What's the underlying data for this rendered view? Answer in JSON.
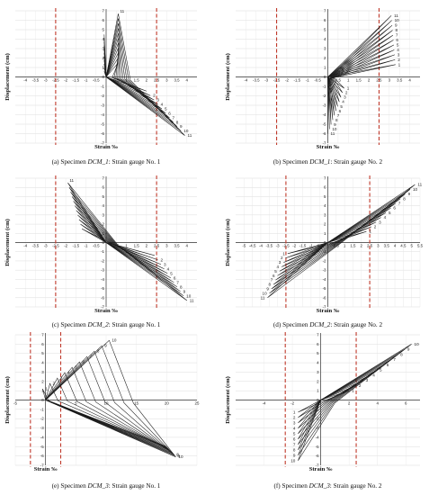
{
  "chart_data": [
    {
      "id": "a",
      "type": "line",
      "caption_prefix": "(a) Specimen ",
      "caption_specimen": "DCM_1",
      "caption_suffix": ": Strain gauge No. 1",
      "xlabel": "Strain ‰",
      "ylabel": "Displacement (cm)",
      "xlim": [
        -4.5,
        4.5
      ],
      "ylim": [
        -7,
        7
      ],
      "xticks": [
        -4,
        -3.5,
        -3,
        -2.5,
        -2,
        -1.5,
        -1,
        -0.5,
        0,
        0.5,
        1,
        1.5,
        2,
        2.5,
        3,
        3.5,
        4
      ],
      "yticks": [
        -7,
        -6,
        -5,
        -4,
        -3,
        -2,
        -1,
        0,
        1,
        2,
        3,
        4,
        5,
        6,
        7
      ],
      "limit_lines": [
        -2.5,
        2.5
      ],
      "loops": {
        "cycles": 11,
        "up_x": [
          0.6,
          0.6
        ],
        "up_y": [
          1.5,
          6.7
        ],
        "down_x": [
          2.0,
          3.9
        ],
        "down_y": [
          -1.5,
          -6.2
        ],
        "root_x": [
          0.3,
          1.2
        ],
        "tail_x": [
          -0.1,
          -0.1
        ],
        "tail_y": [
          0.6,
          4.5
        ]
      },
      "cycle_labels": [
        "2",
        "3",
        "4",
        "5",
        "6",
        "7",
        "8",
        "9",
        "10",
        "11"
      ],
      "top_labels": [
        "11"
      ]
    },
    {
      "id": "b",
      "type": "line",
      "caption_prefix": "(b) Specimen ",
      "caption_specimen": "DCM_1",
      "caption_suffix": ": Strain gauge No. 2",
      "xlabel": "Strain ‰",
      "ylabel": "Displacement (cm)",
      "xlim": [
        -4.5,
        4.5
      ],
      "ylim": [
        -7,
        7
      ],
      "xticks": [
        -4,
        -3.5,
        -3,
        -2.5,
        -2,
        -1.5,
        -1,
        -0.5,
        0,
        0.5,
        1,
        1.5,
        2,
        2.5,
        3,
        3.5,
        4
      ],
      "yticks": [
        -7,
        -6,
        -5,
        -4,
        -3,
        -2,
        -1,
        0,
        1,
        2,
        3,
        4,
        5,
        6,
        7
      ],
      "limit_lines": [
        -2.5,
        2.5
      ],
      "loops": {
        "cycles": 11,
        "up_x": [
          3.3,
          3.1
        ],
        "up_y": [
          1.3,
          6.5
        ],
        "down_x": [
          0.8,
          0.0
        ],
        "down_y": [
          -1.2,
          -6.0
        ],
        "root_x": [
          0.3,
          0.0
        ],
        "tail_x": [
          0.0,
          0.0
        ],
        "tail_y": [
          0.0,
          0.0
        ]
      },
      "cycle_labels": [
        "1",
        "2",
        "3",
        "4",
        "5",
        "6",
        "7",
        "8",
        "9",
        "10",
        "11"
      ],
      "lower_labels": [
        "1",
        "2",
        "3",
        "4",
        "5",
        "6",
        "7",
        "8",
        "9",
        "10",
        "11"
      ]
    },
    {
      "id": "c",
      "type": "line",
      "caption_prefix": "(c) Specimen ",
      "caption_specimen": "DCM_2",
      "caption_suffix": ": Strain gauge No. 1",
      "xlabel": "Strain ‰",
      "ylabel": "Displacement (cm)",
      "xlim": [
        -4.5,
        4.5
      ],
      "ylim": [
        -7,
        7
      ],
      "xticks": [
        -4,
        -3.5,
        -3,
        -2.5,
        -2,
        -1.5,
        -1,
        -0.5,
        0,
        0.5,
        1,
        1.5,
        2,
        2.5,
        3,
        3.5,
        4
      ],
      "yticks": [
        -7,
        -6,
        -5,
        -4,
        -3,
        -2,
        -1,
        0,
        1,
        2,
        3,
        4,
        5,
        6,
        7
      ],
      "limit_lines": [
        -2.5,
        2.5
      ],
      "loops": {
        "cycles": 11,
        "up_x": [
          -1.2,
          -1.9
        ],
        "up_y": [
          1.5,
          6.5
        ],
        "down_x": [
          2.4,
          4.0
        ],
        "down_y": [
          -1.4,
          -6.3
        ],
        "root_x": [
          0.2,
          0.6
        ],
        "tail_x": [
          0.0,
          0.0
        ],
        "tail_y": [
          0.0,
          0.0
        ]
      },
      "cycle_labels": [
        "2",
        "3",
        "4",
        "5",
        "6",
        "7",
        "8",
        "9",
        "10",
        "11"
      ],
      "top_labels": [
        "11"
      ]
    },
    {
      "id": "d",
      "type": "line",
      "caption_prefix": "(d) Specimen ",
      "caption_specimen": "DCM_2",
      "caption_suffix": ": Strain gauge No. 2",
      "xlabel": "Strain ‰",
      "ylabel": "Displacement (cm)",
      "xlim": [
        -5.5,
        5.5
      ],
      "ylim": [
        -7,
        7
      ],
      "xticks": [
        -5,
        -4.5,
        -4,
        -3.5,
        -3,
        -2.5,
        -2,
        -1.5,
        -1,
        -0.5,
        0,
        0.5,
        1,
        1.5,
        2,
        2.5,
        3,
        3.5,
        4,
        4.5,
        5,
        5.5
      ],
      "yticks": [
        -7,
        -6,
        -5,
        -4,
        -3,
        -2,
        -1,
        0,
        1,
        2,
        3,
        4,
        5,
        6,
        7
      ],
      "limit_lines": [
        -2.5,
        2.5
      ],
      "loops": {
        "cycles": 11,
        "up_x": [
          2.3,
          5.2
        ],
        "up_y": [
          1.2,
          6.3
        ],
        "down_x": [
          -2.4,
          -3.6
        ],
        "down_y": [
          -1.2,
          -6.0
        ],
        "root_x": [
          0.2,
          0.6
        ],
        "tail_x": [
          0.0,
          0.0
        ],
        "tail_y": [
          0.0,
          0.0
        ]
      },
      "cycle_labels": [
        "1",
        "2",
        "3",
        "4",
        "5",
        "6",
        "7",
        "8",
        "9",
        "10",
        "11"
      ],
      "lower_labels": [
        "1",
        "2",
        "3",
        "4",
        "5",
        "6",
        "7",
        "8",
        "9",
        "10",
        "11"
      ]
    },
    {
      "id": "e",
      "type": "line",
      "caption_prefix": "(e) Specimen ",
      "caption_specimen": "DCM_3",
      "caption_suffix": ": Strain gauge No. 1",
      "xlabel": "Strain ‰",
      "ylabel": "Displacement (cm)",
      "xlim": [
        -5,
        25
      ],
      "ylim": [
        -7,
        7
      ],
      "xticks": [
        -5,
        0,
        5,
        10,
        15,
        20,
        25
      ],
      "yticks": [
        -7,
        -6,
        -5,
        -4,
        -3,
        -2,
        -1,
        0,
        1,
        2,
        3,
        4,
        5,
        6,
        7
      ],
      "limit_lines": [
        -2.5,
        2.5
      ],
      "loops": {
        "cycles": 10,
        "up_x": [
          -0.5,
          10.5
        ],
        "up_y": [
          1.2,
          6.4
        ],
        "down_x": [
          20.0,
          21.5
        ],
        "down_y": [
          -5.0,
          -6.1
        ],
        "root_x": [
          0.5,
          14.5
        ],
        "tail_x": [
          0.0,
          0.0
        ],
        "tail_y": [
          0.0,
          0.0
        ]
      },
      "cycle_labels": [
        "1",
        "2",
        "3",
        "4",
        "5",
        "6",
        "7",
        "8",
        "9",
        "10"
      ],
      "lower_labels": [
        "8",
        "9",
        "10"
      ]
    },
    {
      "id": "f",
      "type": "line",
      "caption_prefix": "(f) Specimen ",
      "caption_specimen": "DCM_3",
      "caption_suffix": ": Strain gauge No. 2",
      "xlabel": "Strain ‰",
      "ylabel": "Displacement (cm)",
      "xlim": [
        -6,
        7
      ],
      "ylim": [
        -7,
        7
      ],
      "xticks": [
        -4,
        -2,
        0,
        2,
        4,
        6
      ],
      "yticks": [
        -7,
        -6,
        -5,
        -4,
        -3,
        -2,
        -1,
        0,
        1,
        2,
        3,
        4,
        5,
        6,
        7
      ],
      "limit_lines": [
        -2.5,
        2.5
      ],
      "loops": {
        "cycles": 10,
        "up_x": [
          2.0,
          6.4
        ],
        "up_y": [
          1.0,
          6.0
        ],
        "down_x": [
          -1.6,
          -1.6
        ],
        "down_y": [
          -1.3,
          -6.5
        ],
        "root_x": [
          0.3,
          1.0
        ],
        "tail_x": [
          0.0,
          0.0
        ],
        "tail_y": [
          0.0,
          0.0
        ]
      },
      "cycle_labels": [
        "1",
        "2",
        "3",
        "4",
        "5",
        "6",
        "7",
        "8",
        "9",
        "10"
      ],
      "lower_labels": [
        "1",
        "2",
        "3",
        "4",
        "5",
        "6",
        "7",
        "8",
        "9",
        "10"
      ]
    }
  ]
}
